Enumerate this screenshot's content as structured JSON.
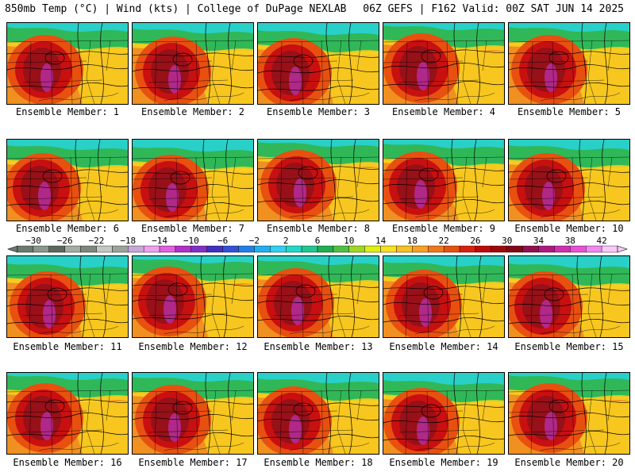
{
  "header": {
    "left_title": "850mb Temp (°C) | Wind (kts) | College of DuPage NEXLAB",
    "right_title": "06Z GEFS | F162 Valid: 00Z SAT JUN 14 2025"
  },
  "colorbar": {
    "tick_labels": [
      "−30",
      "−26",
      "−22",
      "−18",
      "−14",
      "−10",
      "−6",
      "−2",
      "2",
      "6",
      "10",
      "14",
      "18",
      "22",
      "26",
      "30",
      "34",
      "38",
      "42"
    ],
    "tick_values": [
      -30,
      -26,
      -22,
      -18,
      -14,
      -10,
      -6,
      -2,
      2,
      6,
      10,
      14,
      18,
      22,
      26,
      30,
      34,
      38,
      42
    ],
    "bins": [
      {
        "from": -32,
        "color": "#6b7a6b"
      },
      {
        "from": -30,
        "color": "#8a978a"
      },
      {
        "from": -28,
        "color": "#5c685c"
      },
      {
        "from": -26,
        "color": "#a3ada3"
      },
      {
        "from": -24,
        "color": "#7d887d"
      },
      {
        "from": -22,
        "color": "#c2c9c2"
      },
      {
        "from": -20,
        "color": "#9aa49a"
      },
      {
        "from": -18,
        "color": "#c8a8d8"
      },
      {
        "from": -16,
        "color": "#f0a0f0"
      },
      {
        "from": -14,
        "color": "#e060e0"
      },
      {
        "from": -12,
        "color": "#b030c8"
      },
      {
        "from": -10,
        "color": "#8030c8"
      },
      {
        "from": -8,
        "color": "#4030c0"
      },
      {
        "from": -6,
        "color": "#3050d8"
      },
      {
        "from": -4,
        "color": "#2080e8"
      },
      {
        "from": -2,
        "color": "#20b0f0"
      },
      {
        "from": 0,
        "color": "#30d0f0"
      },
      {
        "from": 2,
        "color": "#20d8c8"
      },
      {
        "from": 4,
        "color": "#20c890"
      },
      {
        "from": 6,
        "color": "#20b050"
      },
      {
        "from": 8,
        "color": "#50c040"
      },
      {
        "from": 10,
        "color": "#a0d820"
      },
      {
        "from": 12,
        "color": "#e0f010"
      },
      {
        "from": 14,
        "color": "#f8e020"
      },
      {
        "from": 16,
        "color": "#f8c020"
      },
      {
        "from": 18,
        "color": "#f8a020"
      },
      {
        "from": 20,
        "color": "#f07818"
      },
      {
        "from": 22,
        "color": "#e85010"
      },
      {
        "from": 24,
        "color": "#d82010"
      },
      {
        "from": 26,
        "color": "#c00808"
      },
      {
        "from": 28,
        "color": "#a00808"
      },
      {
        "from": 30,
        "color": "#800818"
      },
      {
        "from": 32,
        "color": "#901050"
      },
      {
        "from": 34,
        "color": "#b01880"
      },
      {
        "from": 36,
        "color": "#d030b0"
      },
      {
        "from": 38,
        "color": "#e850d8"
      },
      {
        "from": 40,
        "color": "#f088f0"
      },
      {
        "from": 42,
        "color": "#f8c8f8"
      }
    ],
    "range": [
      -32,
      44
    ]
  },
  "members": [
    {
      "label": "Ensemble Member: 1"
    },
    {
      "label": "Ensemble Member: 2"
    },
    {
      "label": "Ensemble Member: 3"
    },
    {
      "label": "Ensemble Member: 4"
    },
    {
      "label": "Ensemble Member: 5"
    },
    {
      "label": "Ensemble Member: 6"
    },
    {
      "label": "Ensemble Member: 7"
    },
    {
      "label": "Ensemble Member: 8"
    },
    {
      "label": "Ensemble Member: 9"
    },
    {
      "label": "Ensemble Member: 10"
    },
    {
      "label": "Ensemble Member: 11"
    },
    {
      "label": "Ensemble Member: 12"
    },
    {
      "label": "Ensemble Member: 13"
    },
    {
      "label": "Ensemble Member: 14"
    },
    {
      "label": "Ensemble Member: 15"
    },
    {
      "label": "Ensemble Member: 16"
    },
    {
      "label": "Ensemble Member: 17"
    },
    {
      "label": "Ensemble Member: 18"
    },
    {
      "label": "Ensemble Member: 19"
    },
    {
      "label": "Ensemble Member: 20"
    }
  ],
  "map_colors": {
    "north_green": "#30b858",
    "cyan": "#28d0c8",
    "yellow": "#f8d020",
    "orange": "#f09020",
    "red_orange": "#e85010",
    "red": "#c81010",
    "dark_red": "#981018",
    "magenta": "#b02888",
    "contour": "#000000"
  }
}
